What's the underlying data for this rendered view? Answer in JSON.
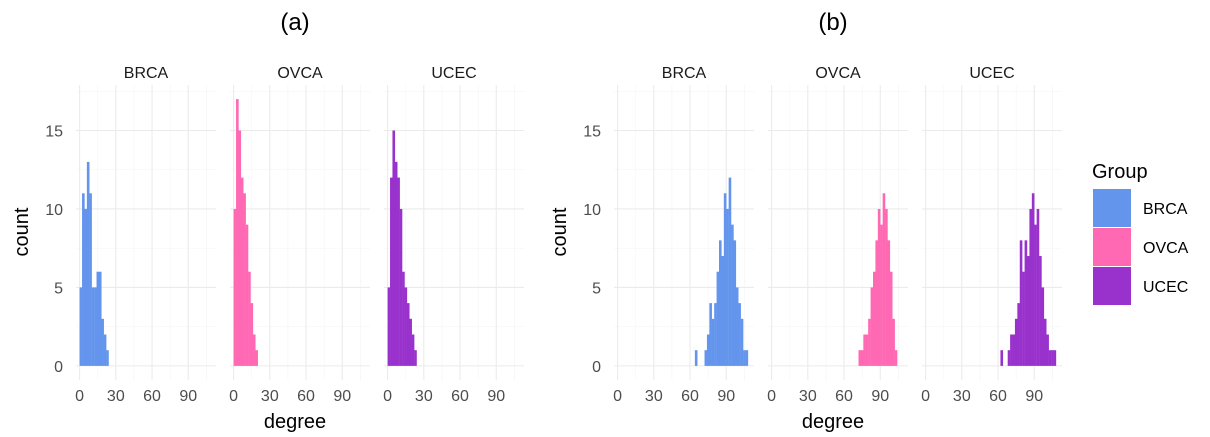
{
  "chart_data": [
    {
      "type": "bar",
      "title": "(a)",
      "xlabel": "degree",
      "ylabel": "count",
      "xticks": [
        "0",
        "30",
        "60",
        "90"
      ],
      "yticks": [
        "0",
        "5",
        "10",
        "15"
      ],
      "xlim": [
        -3,
        113
      ],
      "ylim": [
        -0.9,
        17.9
      ],
      "bin_width": 2,
      "facets": [
        {
          "name": "BRCA",
          "color": "#6495ED",
          "x": [
            0,
            2,
            4,
            6,
            8,
            10,
            12,
            14,
            16,
            18,
            20,
            22
          ],
          "values": [
            5,
            11,
            10,
            13,
            11,
            5,
            5,
            6,
            6,
            3,
            2,
            1
          ]
        },
        {
          "name": "OVCA",
          "color": "#FF69B4",
          "x": [
            0,
            2,
            4,
            6,
            8,
            10,
            12,
            14,
            16,
            18
          ],
          "values": [
            10,
            17,
            15,
            12,
            11,
            9,
            6,
            4,
            2,
            1
          ]
        },
        {
          "name": "UCEC",
          "color": "#9932CC",
          "x": [
            0,
            2,
            4,
            6,
            8,
            10,
            12,
            14,
            16,
            18,
            20,
            22
          ],
          "values": [
            5,
            12,
            15,
            13,
            12,
            10,
            6,
            5,
            4,
            3,
            2,
            1
          ]
        }
      ]
    },
    {
      "type": "bar",
      "title": "(b)",
      "xlabel": "degree",
      "ylabel": "count",
      "xticks": [
        "0",
        "30",
        "60",
        "90"
      ],
      "yticks": [
        "0",
        "5",
        "10",
        "15"
      ],
      "xlim": [
        -3,
        113
      ],
      "ylim": [
        -0.9,
        17.9
      ],
      "bin_width": 2,
      "facets": [
        {
          "name": "BRCA",
          "color": "#6495ED",
          "x": [
            64,
            68,
            72,
            74,
            76,
            78,
            80,
            82,
            84,
            86,
            88,
            90,
            92,
            94,
            96,
            98,
            100,
            102,
            104,
            106
          ],
          "values": [
            1,
            0,
            1,
            2,
            4,
            3,
            4,
            6,
            8,
            7,
            11,
            10,
            12,
            9,
            8,
            5,
            4,
            3,
            1,
            1
          ]
        },
        {
          "name": "OVCA",
          "color": "#FF69B4",
          "x": [
            72,
            74,
            76,
            78,
            80,
            82,
            84,
            86,
            88,
            90,
            92,
            94,
            96,
            98,
            100,
            102
          ],
          "values": [
            1,
            1,
            2,
            2,
            3,
            5,
            6,
            8,
            10,
            9,
            11,
            10,
            8,
            6,
            3,
            1
          ]
        },
        {
          "name": "UCEC",
          "color": "#9932CC",
          "x": [
            62,
            68,
            70,
            72,
            74,
            76,
            78,
            80,
            82,
            84,
            86,
            88,
            90,
            92,
            94,
            96,
            98,
            100,
            102,
            104,
            106
          ],
          "values": [
            1,
            1,
            2,
            2,
            3,
            4,
            8,
            6,
            8,
            7,
            10,
            11,
            9,
            10,
            7,
            5,
            3,
            2,
            1,
            1,
            1
          ]
        }
      ]
    }
  ],
  "legend": {
    "title": "Group",
    "items": [
      {
        "label": "BRCA",
        "color": "#6495ED"
      },
      {
        "label": "OVCA",
        "color": "#FF69B4"
      },
      {
        "label": "UCEC",
        "color": "#9932CC"
      }
    ]
  }
}
